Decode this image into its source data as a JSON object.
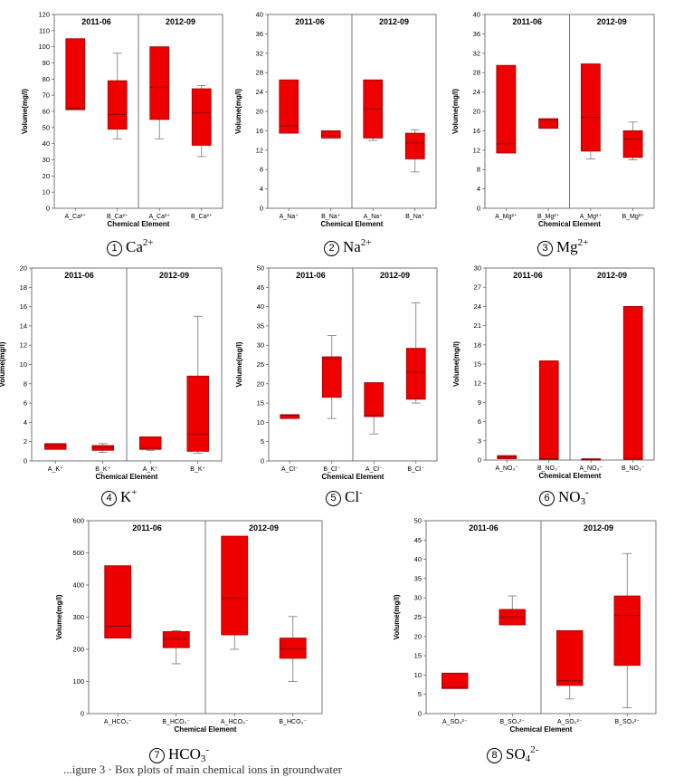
{
  "figure": {
    "cropped_text": "...igure 3 · Box plots of main chemical ions in groundwater"
  },
  "chart_data": [
    {
      "type": "boxplot",
      "ion": "Ca2+",
      "caption": {
        "num": "1",
        "base": "Ca",
        "sup": "2+",
        "sub": ""
      },
      "ylabel": "Volume(mg/l)",
      "xlabel": "Chemical Element",
      "ylim": [
        0,
        120
      ],
      "yticks": [
        0,
        10,
        20,
        30,
        40,
        50,
        60,
        70,
        80,
        90,
        100,
        110,
        120
      ],
      "periods": [
        "2011-06",
        "2012-09"
      ],
      "categories": [
        "A_Ca²⁺",
        "B_Ca²⁺",
        "A_Ca²⁺",
        "B_Ca²⁺"
      ],
      "boxes": [
        {
          "min": 61,
          "q1": 61,
          "median": 62,
          "q3": 105,
          "max": 105
        },
        {
          "min": 43,
          "q1": 49,
          "median": 58,
          "q3": 79,
          "max": 96
        },
        {
          "min": 43,
          "q1": 55,
          "median": 75,
          "q3": 100,
          "max": 100
        },
        {
          "min": 32,
          "q1": 39,
          "median": 59,
          "q3": 74,
          "max": 76
        }
      ]
    },
    {
      "type": "boxplot",
      "ion": "Na2+",
      "caption": {
        "num": "2",
        "base": "Na",
        "sup": "2+",
        "sub": ""
      },
      "ylabel": "Volume(mg/l)",
      "xlabel": "Chemical Element",
      "ylim": [
        0,
        40
      ],
      "yticks": [
        0,
        4,
        8,
        12,
        16,
        20,
        24,
        28,
        32,
        36,
        40
      ],
      "periods": [
        "2011-06",
        "2012-09"
      ],
      "categories": [
        "A_Na⁺",
        "B_Na⁺",
        "A_Na⁺",
        "B_Na⁺"
      ],
      "boxes": [
        {
          "min": 15.5,
          "q1": 15.5,
          "median": 17,
          "q3": 26.5,
          "max": 26.5
        },
        {
          "min": 14.5,
          "q1": 14.5,
          "median": 15,
          "q3": 16,
          "max": 16
        },
        {
          "min": 14,
          "q1": 14.5,
          "median": 20.5,
          "q3": 26.5,
          "max": 26.5
        },
        {
          "min": 7.5,
          "q1": 10.2,
          "median": 13.5,
          "q3": 15.5,
          "max": 16.2
        }
      ]
    },
    {
      "type": "boxplot",
      "ion": "Mg2+",
      "caption": {
        "num": "3",
        "base": "Mg",
        "sup": "2+",
        "sub": ""
      },
      "ylabel": "Volume(mg/l)",
      "xlabel": "Chemical Element",
      "ylim": [
        0,
        40
      ],
      "yticks": [
        0,
        4,
        8,
        12,
        16,
        20,
        24,
        28,
        32,
        36,
        40
      ],
      "periods": [
        "2011-06",
        "2012-09"
      ],
      "categories": [
        "A_Mg²⁺",
        "B_Mg²⁺",
        "A_Mg²⁺",
        "B_Mg²⁺"
      ],
      "boxes": [
        {
          "min": 11.4,
          "q1": 11.4,
          "median": 13.3,
          "q3": 29.5,
          "max": 29.5
        },
        {
          "min": 16.5,
          "q1": 16.5,
          "median": 18.2,
          "q3": 18.5,
          "max": 18.5
        },
        {
          "min": 10.2,
          "q1": 11.8,
          "median": 18.8,
          "q3": 29.8,
          "max": 29.8
        },
        {
          "min": 10,
          "q1": 10.5,
          "median": 14.3,
          "q3": 16,
          "max": 17.8
        }
      ]
    },
    {
      "type": "boxplot",
      "ion": "K+",
      "caption": {
        "num": "4",
        "base": "K",
        "sup": "+",
        "sub": ""
      },
      "ylabel": "Volume(mg/l)",
      "xlabel": "Chemical Element",
      "ylim": [
        0,
        20
      ],
      "yticks": [
        0,
        2,
        4,
        6,
        8,
        10,
        12,
        14,
        16,
        18,
        20
      ],
      "periods": [
        "2011-06",
        "2012-09"
      ],
      "categories": [
        "A_K⁺",
        "B_K⁺",
        "A_K⁺",
        "B_K⁺"
      ],
      "boxes": [
        {
          "min": 1.2,
          "q1": 1.2,
          "median": 1.6,
          "q3": 1.8,
          "max": 1.8
        },
        {
          "min": 0.9,
          "q1": 1.1,
          "median": 1.4,
          "q3": 1.6,
          "max": 1.8
        },
        {
          "min": 1.1,
          "q1": 1.2,
          "median": 1.3,
          "q3": 2.5,
          "max": 2.5
        },
        {
          "min": 0.8,
          "q1": 1,
          "median": 2.8,
          "q3": 8.8,
          "max": 15
        }
      ]
    },
    {
      "type": "boxplot",
      "ion": "Cl-",
      "caption": {
        "num": "5",
        "base": "Cl",
        "sup": "-",
        "sub": ""
      },
      "ylabel": "Volume(mg/l)",
      "xlabel": "Chemical Element",
      "ylim": [
        0,
        50
      ],
      "yticks": [
        0,
        5,
        10,
        15,
        20,
        25,
        30,
        35,
        40,
        45,
        50
      ],
      "periods": [
        "2011-06",
        "2012-09"
      ],
      "categories": [
        "A_Cl⁻",
        "B_Cl⁻",
        "A_Cl⁻",
        "B_Cl⁻"
      ],
      "boxes": [
        {
          "min": 11,
          "q1": 11,
          "median": 11.8,
          "q3": 12,
          "max": 12
        },
        {
          "min": 11,
          "q1": 16.5,
          "median": 26.5,
          "q3": 27,
          "max": 32.5
        },
        {
          "min": 7,
          "q1": 11.5,
          "median": 11.8,
          "q3": 20.3,
          "max": 20.3
        },
        {
          "min": 15,
          "q1": 16,
          "median": 23,
          "q3": 29.2,
          "max": 41
        }
      ]
    },
    {
      "type": "boxplot",
      "ion": "NO3-",
      "caption": {
        "num": "6",
        "base": "NO",
        "sup": "-",
        "sub": "3"
      },
      "ylabel": "Volume(mg/l)",
      "xlabel": "Chemical Element",
      "ylim": [
        0,
        30
      ],
      "yticks": [
        0,
        3,
        6,
        9,
        12,
        15,
        18,
        21,
        24,
        27,
        30
      ],
      "periods": [
        "2011-06",
        "2012-09"
      ],
      "categories": [
        "A_NO₃⁻",
        "B_NO₃⁻",
        "A_NO₃⁻",
        "B_NO₃⁻"
      ],
      "boxes": [
        {
          "min": 0.2,
          "q1": 0.2,
          "median": 0.5,
          "q3": 0.7,
          "max": 0.7
        },
        {
          "min": 0.1,
          "q1": 0.1,
          "median": 0.2,
          "q3": 15.5,
          "max": 15.5
        },
        {
          "min": 0.1,
          "q1": 0.1,
          "median": 0.1,
          "q3": 0.2,
          "max": 0.2
        },
        {
          "min": 0.1,
          "q1": 0.1,
          "median": 0.3,
          "q3": 24,
          "max": 24
        }
      ]
    },
    {
      "type": "boxplot",
      "ion": "HCO3-",
      "caption": {
        "num": "7",
        "base": "HCO",
        "sup": "-",
        "sub": "3"
      },
      "ylabel": "Volume(mg/l)",
      "xlabel": "Chemical Element",
      "ylim": [
        0,
        600
      ],
      "yticks": [
        0,
        100,
        200,
        300,
        400,
        500,
        600
      ],
      "periods": [
        "2011-06",
        "2012-09"
      ],
      "categories": [
        "A_HCO₃⁻",
        "B_HCO₃⁻",
        "A_HCO₃⁻",
        "B_HCO₃⁻"
      ],
      "boxes": [
        {
          "min": 235,
          "q1": 235,
          "median": 272,
          "q3": 460,
          "max": 460
        },
        {
          "min": 155,
          "q1": 205,
          "median": 232,
          "q3": 255,
          "max": 258
        },
        {
          "min": 200,
          "q1": 245,
          "median": 358,
          "q3": 552,
          "max": 552
        },
        {
          "min": 100,
          "q1": 172,
          "median": 202,
          "q3": 235,
          "max": 302
        }
      ]
    },
    {
      "type": "boxplot",
      "ion": "SO42-",
      "caption": {
        "num": "8",
        "base": "SO",
        "sup": "2-",
        "sub": "4"
      },
      "ylabel": "Volume(mg/l)",
      "xlabel": "Chemical Element",
      "ylim": [
        0,
        50
      ],
      "yticks": [
        0,
        5,
        10,
        15,
        20,
        25,
        30,
        35,
        40,
        45,
        50
      ],
      "periods": [
        "2011-06",
        "2012-09"
      ],
      "categories": [
        "A_SO₄²⁻",
        "B_SO₄²⁻",
        "A_SO₄²⁻",
        "B_SO₄²⁻"
      ],
      "boxes": [
        {
          "min": 6.5,
          "q1": 6.5,
          "median": 6.8,
          "q3": 10.5,
          "max": 10.5
        },
        {
          "min": 23,
          "q1": 23,
          "median": 25,
          "q3": 27,
          "max": 30.5
        },
        {
          "min": 3.8,
          "q1": 7.3,
          "median": 8.5,
          "q3": 21.5,
          "max": 21.5
        },
        {
          "min": 1.5,
          "q1": 12.5,
          "median": 25.5,
          "q3": 30.5,
          "max": 41.5
        }
      ]
    }
  ]
}
